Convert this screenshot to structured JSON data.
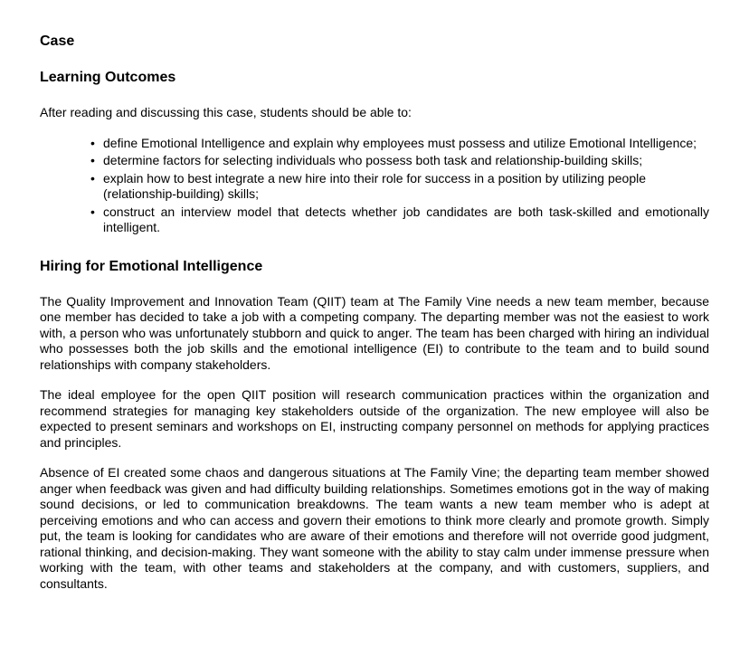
{
  "headings": {
    "case": "Case",
    "learning_outcomes": "Learning Outcomes",
    "hiring": "Hiring for Emotional Intelligence"
  },
  "intro": "After reading and discussing this case, students should be able to:",
  "outcomes": [
    "define Emotional Intelligence and explain why employees must possess and utilize Emotional Intelligence;",
    "determine factors for selecting individuals who possess both task and relationship-building skills;",
    "explain how to best integrate a new hire into their role for success in a position by utilizing people (relationship-building) skills;",
    "construct an interview model that detects whether job candidates are both task-skilled and emotionally intelligent."
  ],
  "paragraphs": [
    "The Quality Improvement and Innovation Team (QIIT) team at The Family Vine needs a new team member, because one member has decided to take a job with a competing company. The departing member was not the easiest to work with, a person who was unfortunately stubborn and quick to anger. The team has been charged with hiring an individual who possesses both the job skills and the emotional intelligence (EI) to contribute to the team and to build sound relationships with company stakeholders.",
    "The ideal employee for the open QIIT position will research communication practices within the organization and recommend strategies for managing key stakeholders outside of the organization. The new employee will also be expected to present seminars and workshops on EI, instructing company personnel on methods for applying practices and principles.",
    "Absence of EI created some chaos and dangerous situations at The Family Vine; the departing team member showed anger when feedback was given and had difficulty building relationships. Sometimes emotions got in the way of making sound decisions, or led to communication breakdowns. The team wants a new team member who is adept at perceiving emotions and who can access and govern their emotions to think more clearly and promote growth. Simply put, the team is looking for candidates who are aware of their emotions and therefore will not override good judgment, rational thinking, and decision-making. They want someone with the ability to stay calm under immense pressure when working with the team, with other teams and stakeholders at the company, and with customers, suppliers, and consultants."
  ]
}
